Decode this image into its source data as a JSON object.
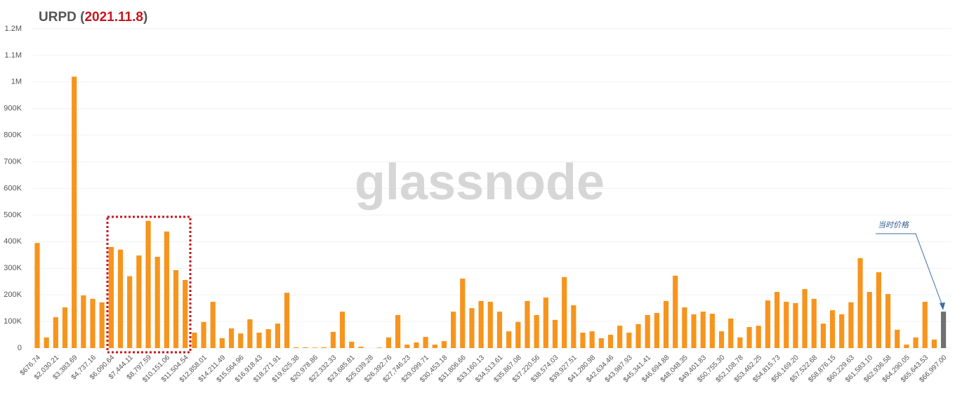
{
  "chart_data": {
    "type": "bar",
    "title_prefix": "URPD (",
    "title_date": "2021.11.8",
    "title_suffix": ")",
    "watermark": "glassnode",
    "annotation": "当时价格",
    "categories": [
      "$676.74",
      null,
      "$2,030.21",
      null,
      "$3,383.69",
      null,
      "$4,737.16",
      null,
      "$6,090.64",
      null,
      "$7,444.11",
      null,
      "$8,797.59",
      null,
      "$10,151.06",
      null,
      "$11,504.54",
      null,
      "$12,858.01",
      null,
      "$14,211.49",
      null,
      "$15,564.96",
      null,
      "$16,918.43",
      null,
      "$18,271.91",
      null,
      "$19,625.38",
      null,
      "$20,978.86",
      null,
      "$22,332.33",
      null,
      "$23,685.81",
      null,
      "$25,039.28",
      null,
      "$26,392.76",
      null,
      "$27,746.23",
      null,
      "$29,099.71",
      null,
      "$30,453.18",
      null,
      "$31,806.66",
      null,
      "$33,160.13",
      null,
      "$34,513.61",
      null,
      "$35,867.08",
      null,
      "$37,220.56",
      null,
      "$38,574.03",
      null,
      "$39,927.51",
      null,
      "$41,280.98",
      null,
      "$42,634.46",
      null,
      "$43,987.93",
      null,
      "$45,341.41",
      null,
      "$46,694.88",
      null,
      "$48,048.35",
      null,
      "$49,401.83",
      null,
      "$50,755.30",
      null,
      "$52,108.78",
      null,
      "$53,462.25",
      null,
      "$54,815.73",
      null,
      "$56,169.20",
      null,
      "$57,522.68",
      null,
      "$58,876.15",
      null,
      "$60,229.63",
      null,
      "$61,583.10",
      null,
      "$62,936.58",
      null,
      "$64,290.05",
      null,
      "$65,643.53",
      null,
      "$66,997.00"
    ],
    "values": [
      395000,
      40000,
      116000,
      153000,
      1020000,
      198000,
      185000,
      172000,
      380000,
      370000,
      270000,
      348000,
      478000,
      343000,
      438000,
      293000,
      256000,
      58000,
      98000,
      174000,
      37000,
      74000,
      55000,
      108000,
      58000,
      71000,
      92000,
      208000,
      3000,
      3000,
      2000,
      3000,
      61000,
      137000,
      24000,
      5000,
      0,
      2000,
      40000,
      124000,
      13000,
      21000,
      42000,
      13000,
      26000,
      137000,
      261000,
      150000,
      177000,
      174000,
      137000,
      63000,
      98000,
      177000,
      124000,
      190000,
      106000,
      267000,
      161000,
      58000,
      63000,
      37000,
      50000,
      84000,
      58000,
      90000,
      124000,
      132000,
      177000,
      272000,
      153000,
      127000,
      137000,
      129000,
      63000,
      111000,
      40000,
      79000,
      84000,
      179000,
      211000,
      174000,
      169000,
      222000,
      185000,
      92000,
      142000,
      127000,
      172000,
      338000,
      211000,
      285000,
      203000,
      69000,
      13000,
      40000,
      174000,
      32000,
      137000
    ],
    "color": "#f7941d",
    "current_price_color": "#707070",
    "ylim": [
      0,
      1200000
    ],
    "yticks": [
      0,
      {
        "value": 100000,
        "label": "100K"
      },
      {
        "value": 200000,
        "label": "200K"
      },
      {
        "value": 300000,
        "label": "300K"
      },
      {
        "value": 400000,
        "label": "400K"
      },
      {
        "value": 500000,
        "label": "500K"
      },
      {
        "value": 600000,
        "label": "600K"
      },
      {
        "value": 700000,
        "label": "700K"
      },
      {
        "value": 800000,
        "label": "800K"
      },
      {
        "value": 900000,
        "label": "900K"
      },
      {
        "value": 1000000,
        "label": "1M"
      },
      {
        "value": 1100000,
        "label": "1.1M"
      },
      {
        "value": 1200000,
        "label": "1.2M"
      }
    ],
    "grid": true
  }
}
